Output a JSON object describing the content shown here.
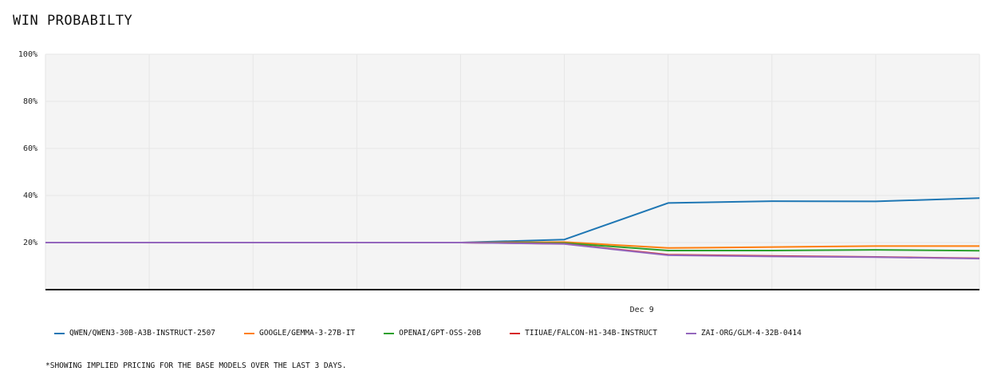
{
  "chart_data": {
    "type": "line",
    "title": "WIN PROBABILTY",
    "x_tick_labels": [
      "Dec 9"
    ],
    "y_tick_labels": [
      "20%",
      "40%",
      "60%",
      "80%",
      "100%"
    ],
    "ylim": [
      0,
      100
    ],
    "y_ticks": [
      20,
      40,
      60,
      80,
      100
    ],
    "grid": true,
    "legend_position": "bottom",
    "x": [
      0,
      1,
      2,
      3,
      4,
      5,
      6,
      7,
      8,
      9
    ],
    "series": [
      {
        "name": "QWEN/QWEN3-30B-A3B-INSTRUCT-2507",
        "color": "#1f77b4",
        "values": [
          20,
          20,
          20,
          20,
          20,
          21.3,
          36.8,
          37.6,
          37.5,
          38.9
        ]
      },
      {
        "name": "GOOGLE/GEMMA-3-27B-IT",
        "color": "#ff7f0e",
        "values": [
          20,
          20,
          20,
          20,
          20,
          20.2,
          17.7,
          18.1,
          18.5,
          18.5
        ]
      },
      {
        "name": "OPENAI/GPT-OSS-20B",
        "color": "#2ca02c",
        "values": [
          20,
          20,
          20,
          20,
          20,
          19.8,
          16.6,
          16.6,
          16.9,
          16.5
        ]
      },
      {
        "name": "TIIUAE/FALCON-H1-34B-INSTRUCT",
        "color": "#d62728",
        "values": [
          20,
          20,
          20,
          20,
          20,
          19.5,
          14.8,
          14.3,
          13.9,
          13.3
        ]
      },
      {
        "name": "ZAI-ORG/GLM-4-32B-0414",
        "color": "#9467bd",
        "values": [
          20,
          20,
          20,
          20,
          20,
          19.4,
          14.6,
          14.1,
          13.8,
          13.2
        ]
      }
    ]
  },
  "footnote": "*SHOWING IMPLIED PRICING FOR THE BASE MODELS OVER THE LAST 3 DAYS."
}
